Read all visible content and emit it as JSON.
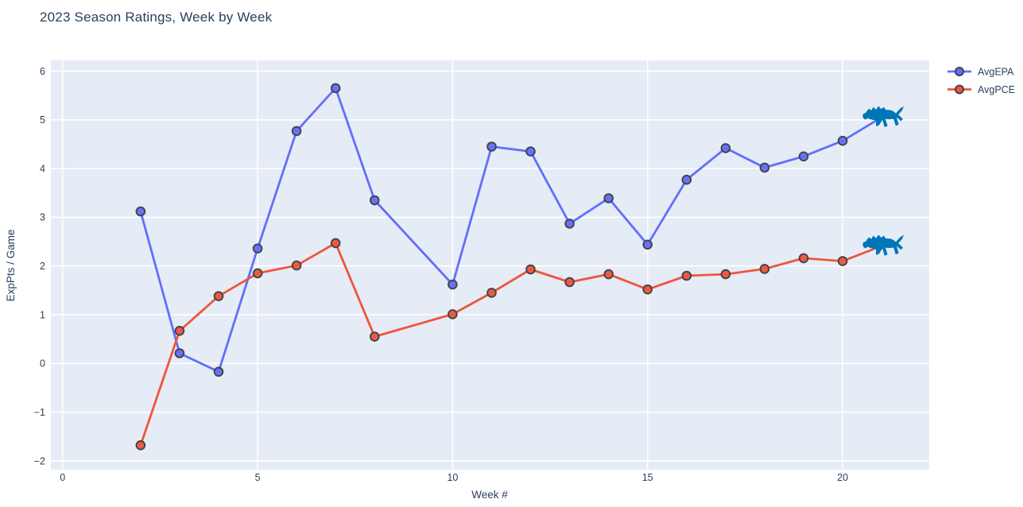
{
  "page": {
    "title": "2023 Season Ratings, Week by Week"
  },
  "colors": {
    "title_text": "#2a3f5f",
    "axis_text": "#2a3f5f",
    "plot_bg": "#e5ecf6",
    "grid": "#ffffff",
    "marker_edge": "#43464b",
    "series_avgepa": "#636efa",
    "series_avgpce": "#ef553b",
    "lions_logo_blue": "#0076b6"
  },
  "chart_data": {
    "type": "line",
    "title": "2023 Season Ratings, Week by Week",
    "xlabel": "Week #",
    "ylabel": "ExpPts / Game",
    "xlim": [
      -0.3,
      22.22
    ],
    "ylim": [
      -2.18,
      6.22
    ],
    "grid": true,
    "legend_position": "top-right-outside",
    "x_ticks": [
      0,
      5,
      10,
      15,
      20
    ],
    "x_tick_labels": [
      "0",
      "5",
      "10",
      "15",
      "20"
    ],
    "y_ticks": [
      -2,
      -1,
      0,
      1,
      2,
      3,
      4,
      5,
      6
    ],
    "y_tick_labels": [
      "−2",
      "−1",
      "0",
      "1",
      "2",
      "3",
      "4",
      "5",
      "6"
    ],
    "x": [
      2,
      3,
      4,
      5,
      6,
      7,
      8,
      10,
      11,
      12,
      13,
      14,
      15,
      16,
      17,
      18,
      19,
      20,
      21
    ],
    "series": [
      {
        "name": "AvgEPA",
        "color": "#636efa",
        "endpoint_marker": "lions-logo-icon",
        "values": [
          3.12,
          0.21,
          -0.17,
          2.36,
          4.77,
          5.65,
          3.35,
          1.62,
          4.45,
          4.35,
          2.87,
          3.39,
          2.44,
          3.77,
          4.42,
          4.02,
          4.25,
          4.57,
          5.05
        ]
      },
      {
        "name": "AvgPCE",
        "color": "#ef553b",
        "endpoint_marker": "lions-logo-icon",
        "values": [
          -1.68,
          0.67,
          1.38,
          1.85,
          2.01,
          2.47,
          0.55,
          1.01,
          1.45,
          1.93,
          1.67,
          1.83,
          1.52,
          1.8,
          1.83,
          1.94,
          2.16,
          2.1,
          2.41
        ]
      }
    ]
  }
}
